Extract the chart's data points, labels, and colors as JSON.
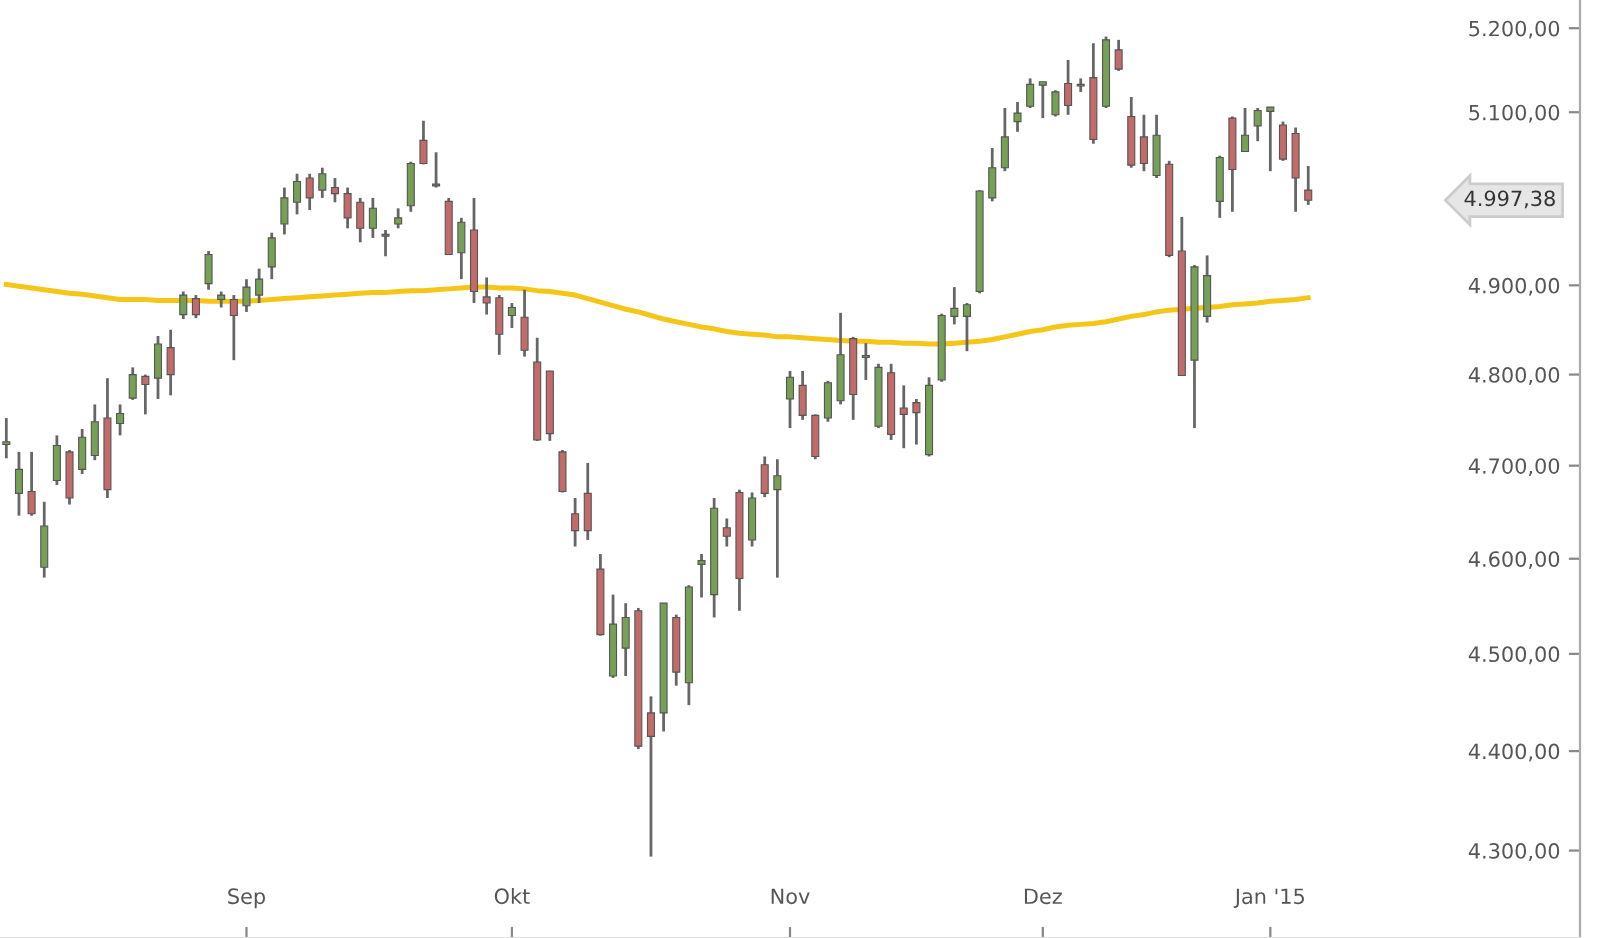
{
  "chart_data": {
    "type": "candlestick",
    "categories": [
      null,
      null,
      null,
      null,
      null,
      null,
      null,
      null,
      null,
      null,
      null,
      null,
      null,
      null,
      null,
      null,
      null,
      null,
      null,
      "Sep",
      null,
      null,
      null,
      null,
      null,
      null,
      null,
      null,
      null,
      null,
      null,
      null,
      null,
      null,
      null,
      null,
      null,
      null,
      null,
      null,
      "Okt",
      null,
      null,
      null,
      null,
      null,
      null,
      null,
      null,
      null,
      null,
      null,
      null,
      null,
      null,
      null,
      null,
      null,
      null,
      null,
      null,
      null,
      "Nov",
      null,
      null,
      null,
      null,
      null,
      null,
      null,
      null,
      null,
      null,
      null,
      null,
      null,
      null,
      null,
      null,
      null,
      null,
      null,
      "Dez",
      null,
      null,
      null,
      null,
      null,
      null,
      null,
      null,
      null,
      null,
      null,
      null,
      null,
      null,
      null,
      null,
      null,
      "Jan '15",
      null,
      null,
      null,
      null,
      null,
      null,
      null,
      null,
      null,
      null,
      null,
      null,
      null,
      null,
      null,
      null,
      null,
      null,
      null,
      null,
      null,
      null,
      null,
      null
    ],
    "ohlc": [
      [
        4723,
        4752,
        4708,
        4726
      ],
      [
        4670,
        4715,
        4646,
        4696
      ],
      [
        4672,
        4715,
        4646,
        4648
      ],
      [
        4591,
        4661,
        4580,
        4635
      ],
      [
        4684,
        4733,
        4679,
        4722
      ],
      [
        4715,
        4717,
        4658,
        4665
      ],
      [
        4696,
        4740,
        4691,
        4731
      ],
      [
        4711,
        4767,
        4706,
        4748
      ],
      [
        4752,
        4796,
        4665,
        4674
      ],
      [
        4746,
        4767,
        4733,
        4757
      ],
      [
        4774,
        4808,
        4772,
        4800
      ],
      [
        4798,
        4800,
        4756,
        4789
      ],
      [
        4796,
        4843,
        4773,
        4834
      ],
      [
        4830,
        4850,
        4777,
        4800
      ],
      [
        4867,
        4893,
        4862,
        4889
      ],
      [
        4885,
        4889,
        4863,
        4867
      ],
      [
        4902,
        4939,
        4895,
        4935
      ],
      [
        4884,
        4893,
        4875,
        4889
      ],
      [
        4884,
        4889,
        4816,
        4866
      ],
      [
        4877,
        4907,
        4870,
        4898
      ],
      [
        4889,
        4919,
        4880,
        4907
      ],
      [
        4921,
        4960,
        4907,
        4954
      ],
      [
        4970,
        5012,
        4958,
        5000
      ],
      [
        4995,
        5028,
        4981,
        5019
      ],
      [
        5023,
        5028,
        4986,
        5000
      ],
      [
        5009,
        5035,
        5000,
        5028
      ],
      [
        5012,
        5023,
        4995,
        5005
      ],
      [
        5005,
        5012,
        4965,
        4977
      ],
      [
        4995,
        5000,
        4949,
        4965
      ],
      [
        4965,
        5000,
        4954,
        4988
      ],
      [
        4956,
        4963,
        4933,
        4958
      ],
      [
        4970,
        4988,
        4965,
        4977
      ],
      [
        4991,
        5042,
        4984,
        5040
      ],
      [
        5067,
        5090,
        5039,
        5040
      ],
      [
        5016,
        5053,
        5012,
        5014
      ],
      [
        4996,
        5000,
        4935,
        4935
      ],
      [
        4937,
        4977,
        4907,
        4972
      ],
      [
        4963,
        5000,
        4880,
        4893
      ],
      [
        4887,
        4909,
        4867,
        4880
      ],
      [
        4886,
        4889,
        4822,
        4845
      ],
      [
        4866,
        4880,
        4852,
        4875
      ],
      [
        4864,
        4895,
        4820,
        4827
      ],
      [
        4814,
        4841,
        4727,
        4728
      ],
      [
        4804,
        4804,
        4727,
        4735
      ],
      [
        4715,
        4717,
        4671,
        4672
      ],
      [
        4648,
        4665,
        4613,
        4630
      ],
      [
        4670,
        4703,
        4620,
        4630
      ],
      [
        4589,
        4605,
        4519,
        4520
      ],
      [
        4477,
        4562,
        4475,
        4531
      ],
      [
        4506,
        4553,
        4477,
        4538
      ],
      [
        4545,
        4548,
        4402,
        4405
      ],
      [
        4439,
        4456,
        4294,
        4415
      ],
      [
        4439,
        4553,
        4420,
        4553
      ],
      [
        4538,
        4541,
        4467,
        4481
      ],
      [
        4470,
        4572,
        4447,
        4570
      ],
      [
        4594,
        4605,
        4559,
        4598
      ],
      [
        4562,
        4665,
        4538,
        4654
      ],
      [
        4633,
        4643,
        4613,
        4624
      ],
      [
        4671,
        4674,
        4545,
        4579
      ],
      [
        4620,
        4671,
        4613,
        4665
      ],
      [
        4701,
        4710,
        4666,
        4670
      ],
      [
        4674,
        4707,
        4580,
        4689
      ],
      [
        4773,
        4804,
        4741,
        4797
      ],
      [
        4788,
        4804,
        4750,
        4755
      ],
      [
        4755,
        4756,
        4707,
        4710
      ],
      [
        4752,
        4793,
        4748,
        4791
      ],
      [
        4771,
        4869,
        4767,
        4822
      ],
      [
        4840,
        4842,
        4750,
        4778
      ],
      [
        4819,
        4835,
        4794,
        4821
      ],
      [
        4743,
        4812,
        4741,
        4808
      ],
      [
        4802,
        4812,
        4728,
        4734
      ],
      [
        4763,
        4788,
        4719,
        4756
      ],
      [
        4769,
        4773,
        4723,
        4758
      ],
      [
        4712,
        4797,
        4710,
        4788
      ],
      [
        4794,
        4868,
        4792,
        4866
      ],
      [
        4865,
        4898,
        4856,
        4874
      ],
      [
        4865,
        4880,
        4826,
        4878
      ],
      [
        4893,
        5009,
        4891,
        5008
      ],
      [
        5000,
        5058,
        4996,
        5035
      ],
      [
        5035,
        5105,
        5031,
        5071
      ],
      [
        5089,
        5112,
        5077,
        5099
      ],
      [
        5107,
        5140,
        5105,
        5133
      ],
      [
        5132,
        5136,
        5093,
        5136
      ],
      [
        5097,
        5126,
        5095,
        5124
      ],
      [
        5134,
        5162,
        5097,
        5108
      ],
      [
        5131,
        5140,
        5124,
        5133
      ],
      [
        5141,
        5182,
        5063,
        5068
      ],
      [
        5107,
        5190,
        5105,
        5186
      ],
      [
        5174,
        5186,
        5149,
        5151
      ],
      [
        5095,
        5118,
        5035,
        5038
      ],
      [
        5071,
        5097,
        5031,
        5040
      ],
      [
        5026,
        5097,
        5023,
        5073
      ],
      [
        5039,
        5043,
        4932,
        4934
      ],
      [
        4939,
        4978,
        4799,
        4799
      ],
      [
        4816,
        4923,
        4741,
        4921
      ],
      [
        4865,
        4934,
        4858,
        4911
      ],
      [
        4996,
        5049,
        4977,
        5047
      ],
      [
        5093,
        5095,
        4984,
        5033
      ],
      [
        5054,
        5105,
        5054,
        5073
      ],
      [
        5084,
        5105,
        5066,
        5102
      ],
      [
        5101,
        5106,
        5031,
        5106
      ],
      [
        5085,
        5089,
        5043,
        5045
      ],
      [
        5075,
        5082,
        4984,
        5023
      ],
      [
        5009,
        5037,
        4992,
        4997.38
      ],
      null,
      null,
      null,
      null,
      null,
      null,
      null,
      null,
      null,
      null,
      null,
      null,
      null,
      null,
      null,
      null,
      null,
      null,
      null,
      null,
      null
    ],
    "colors": [
      "#76a055",
      "#76a055",
      "#c26b6b",
      "#76a055",
      "#76a055",
      "#c26b6b",
      "#76a055",
      "#76a055",
      "#c26b6b",
      "#76a055",
      "#76a055",
      "#c26b6b",
      "#76a055",
      "#c26b6b",
      "#76a055",
      "#c26b6b",
      "#76a055",
      "#76a055",
      "#c26b6b",
      "#76a055",
      "#76a055",
      "#76a055",
      "#76a055",
      "#76a055",
      "#c26b6b",
      "#76a055",
      "#c26b6b",
      "#c26b6b",
      "#c26b6b",
      "#76a055",
      "#76a055",
      "#76a055",
      "#76a055",
      "#c26b6b",
      "#c26b6b",
      "#c26b6b",
      "#76a055",
      "#c26b6b",
      "#c26b6b",
      "#c26b6b",
      "#76a055",
      "#c26b6b",
      "#c26b6b",
      "#c26b6b",
      "#c26b6b",
      "#c26b6b",
      "#c26b6b",
      "#c26b6b",
      "#76a055",
      "#76a055",
      "#c26b6b",
      "#c26b6b",
      "#76a055",
      "#c26b6b",
      "#76a055",
      "#76a055",
      "#76a055",
      "#c26b6b",
      "#c26b6b",
      "#76a055",
      "#c26b6b",
      "#76a055",
      "#76a055",
      "#c26b6b",
      "#c26b6b",
      "#76a055",
      "#76a055",
      "#c26b6b",
      "#76a055",
      "#76a055",
      "#c26b6b",
      "#c26b6b",
      "#c26b6b",
      "#76a055",
      "#76a055",
      "#76a055",
      "#76a055",
      "#76a055",
      "#76a055",
      "#76a055",
      "#76a055",
      "#76a055",
      "#76a055",
      "#76a055",
      "#c26b6b",
      "#76a055",
      "#c26b6b",
      "#76a055",
      "#c26b6b",
      "#c26b6b",
      "#c26b6b",
      "#76a055",
      "#c26b6b",
      "#c26b6b",
      "#76a055",
      "#76a055",
      "#76a055",
      "#c26b6b",
      "#76a055",
      "#76a055",
      "#76a055",
      "#c26b6b",
      "#c26b6b",
      "#c26b6b",
      null,
      null,
      null,
      null,
      null,
      null,
      null,
      null,
      null,
      null,
      null,
      null,
      null,
      null,
      null,
      null,
      null,
      null,
      null,
      null,
      null
    ],
    "series": [
      {
        "type": "line",
        "color": "#f5c518",
        "values": [
          4901,
          4899,
          4897,
          4895,
          4893,
          4891,
          4890,
          4888,
          4886,
          4884,
          4884,
          4884,
          4883,
          4883,
          4883,
          4883,
          4882,
          4882,
          4882,
          4882,
          4883,
          4884,
          4885,
          4886,
          4887,
          4888,
          4889,
          4890,
          4891,
          4892,
          4892,
          4893,
          4894,
          4894,
          4895,
          4896,
          4897,
          4898,
          4898,
          4897,
          4897,
          4896,
          4894,
          4893,
          4891,
          4889,
          4885,
          4881,
          4877,
          4873,
          4870,
          4866,
          4862,
          4859,
          4856,
          4853,
          4851,
          4848,
          4846,
          4845,
          4844,
          4842,
          4842,
          4841,
          4840,
          4839,
          4838,
          4837,
          4837,
          4836,
          4836,
          4835,
          4835,
          4834,
          4834,
          4835,
          4836,
          4837,
          4839,
          4842,
          4845,
          4848,
          4850,
          4853,
          4855,
          4856,
          4857,
          4859,
          4862,
          4865,
          4867,
          4870,
          4872,
          4873,
          4874,
          4875,
          4876,
          4878,
          4879,
          4880,
          4882,
          4883,
          4884,
          4886,
          null,
          null,
          null,
          null,
          null,
          null,
          null,
          null,
          null,
          null,
          null,
          null,
          null,
          null,
          null,
          null,
          null,
          null,
          null,
          null,
          null
        ]
      }
    ],
    "log": "y",
    "ylim": [
      4214,
      5234
    ],
    "yticks": [
      {
        "value": 4300,
        "label": "4.300,00"
      },
      {
        "value": 4400,
        "label": "4.400,00"
      },
      {
        "value": 4500,
        "label": "4.500,00"
      },
      {
        "value": 4600,
        "label": "4.600,00"
      },
      {
        "value": 4700,
        "label": "4.700,00"
      },
      {
        "value": 4800,
        "label": "4.800,00"
      },
      {
        "value": 4900,
        "label": "4.900,00"
      },
      {
        "value": 5100,
        "label": "5.100,00"
      },
      {
        "value": 5200,
        "label": "5.200,00"
      }
    ],
    "annotations": [
      "4.997,38"
    ],
    "grid": false,
    "legend": false
  }
}
